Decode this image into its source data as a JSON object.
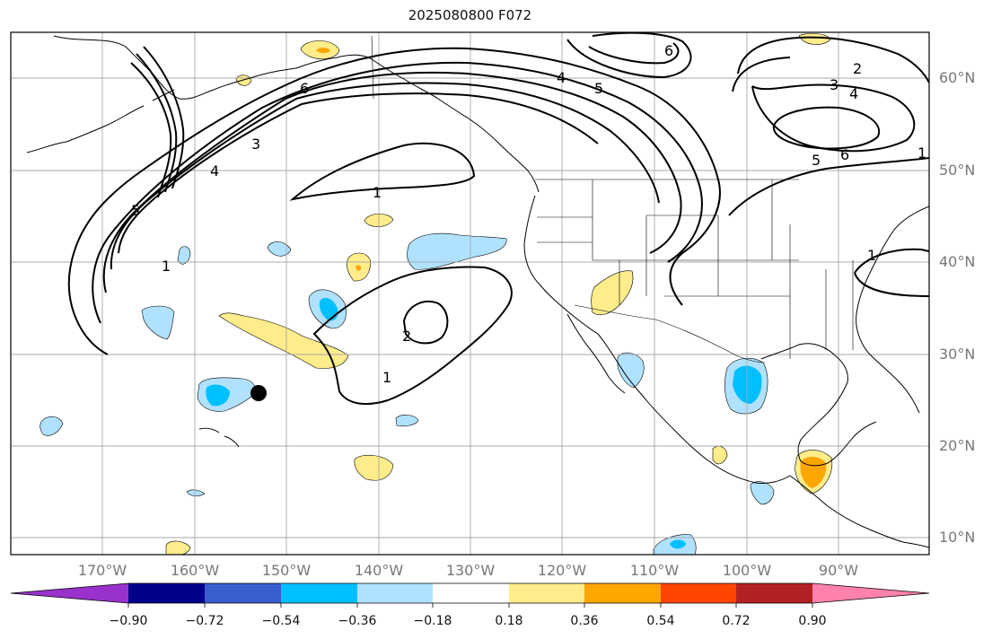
{
  "title": "2025080800 F072",
  "lat_labels": [
    "60°N",
    "50°N",
    "40°N",
    "30°N",
    "20°N",
    "10°N"
  ],
  "lon_labels": [
    "170°W",
    "160°W",
    "150°W",
    "140°W",
    "130°W",
    "120°W",
    "110°W",
    "100°W",
    "90°W"
  ],
  "contour_labels": [
    "1",
    "1",
    "1",
    "1",
    "1",
    "2",
    "2",
    "3",
    "3",
    "4",
    "4",
    "4",
    "5",
    "5",
    "5",
    "6",
    "6",
    "6"
  ],
  "colorbar": {
    "tick_labels": [
      "−0.90",
      "−0.72",
      "−0.54",
      "−0.36",
      "−0.18",
      "0.18",
      "0.36",
      "0.54",
      "0.72",
      "0.90"
    ],
    "colors": [
      "#9932cc",
      "#00008b",
      "#3a5fcd",
      "#00bfff",
      "#b0e2ff",
      "#ffffff",
      "#ffec8b",
      "#ffa500",
      "#ff4500",
      "#b22222",
      "#ff82ab"
    ]
  },
  "colors": {
    "contour": "#000000",
    "coast": "#000000",
    "grid": "#a9a9a9",
    "yellow": "#ffec8b",
    "orange": "#ffa500",
    "lightblue": "#b0e2ff",
    "deepskyblue": "#00bfff"
  }
}
